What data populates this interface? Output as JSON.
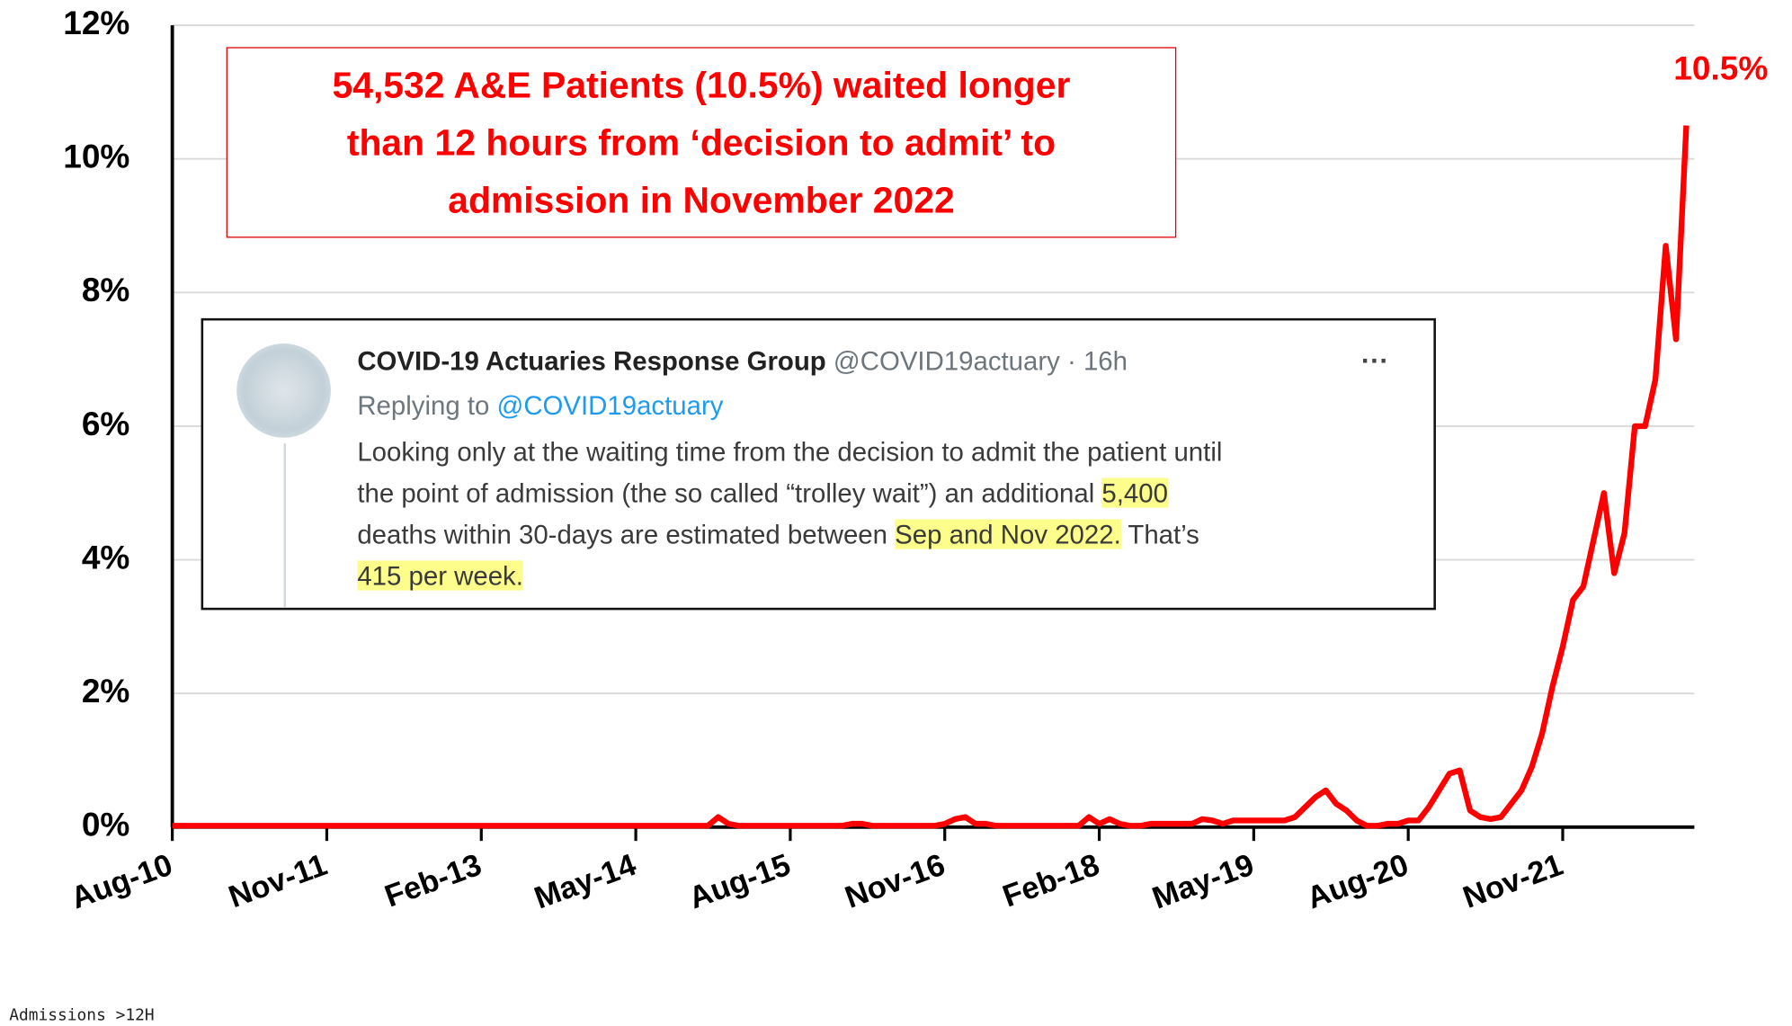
{
  "chart_data": {
    "type": "line",
    "annotation": {
      "lines": [
        "54,532 A&E Patients (10.5%) waited longer",
        "than 12 hours from ‘decision to admit’ to",
        "admission in November 2022"
      ]
    },
    "categories": [
      "Aug-10",
      null,
      null,
      null,
      null,
      null,
      null,
      null,
      null,
      null,
      null,
      null,
      null,
      null,
      null,
      "Nov-11",
      null,
      null,
      null,
      null,
      null,
      null,
      null,
      null,
      null,
      null,
      null,
      null,
      null,
      null,
      "Feb-13",
      null,
      null,
      null,
      null,
      null,
      null,
      null,
      null,
      null,
      null,
      null,
      null,
      null,
      null,
      "May-14",
      null,
      null,
      null,
      null,
      null,
      null,
      null,
      null,
      null,
      null,
      null,
      null,
      null,
      null,
      "Aug-15",
      null,
      null,
      null,
      null,
      null,
      null,
      null,
      null,
      null,
      null,
      null,
      null,
      null,
      null,
      "Nov-16",
      null,
      null,
      null,
      null,
      null,
      null,
      null,
      null,
      null,
      null,
      null,
      null,
      null,
      null,
      "Feb-18",
      null,
      null,
      null,
      null,
      null,
      null,
      null,
      null,
      null,
      null,
      null,
      null,
      null,
      null,
      "May-19",
      null,
      null,
      null,
      null,
      null,
      null,
      null,
      null,
      null,
      null,
      null,
      null,
      null,
      null,
      "Aug-20",
      null,
      null,
      null,
      null,
      null,
      null,
      null,
      null,
      null,
      null,
      null,
      null,
      null,
      null,
      "Nov-21",
      null,
      null,
      null,
      null,
      null,
      null,
      null,
      null,
      null,
      null,
      null,
      null
    ],
    "series": [
      {
        "name": "Admissions >12H",
        "color": "#ff0000",
        "values": [
          0.02,
          0.02,
          0.02,
          0.02,
          0.02,
          0.02,
          0.02,
          0.02,
          0.02,
          0.02,
          0.02,
          0.02,
          0.02,
          0.02,
          0.02,
          0.02,
          0.02,
          0.02,
          0.02,
          0.02,
          0.02,
          0.02,
          0.02,
          0.02,
          0.02,
          0.02,
          0.02,
          0.02,
          0.02,
          0.02,
          0.02,
          0.02,
          0.02,
          0.02,
          0.02,
          0.02,
          0.02,
          0.02,
          0.02,
          0.02,
          0.02,
          0.02,
          0.02,
          0.02,
          0.02,
          0.02,
          0.02,
          0.02,
          0.02,
          0.02,
          0.02,
          0.02,
          0.02,
          0.15,
          0.05,
          0.02,
          0.02,
          0.02,
          0.02,
          0.02,
          0.02,
          0.02,
          0.02,
          0.02,
          0.02,
          0.02,
          0.05,
          0.05,
          0.02,
          0.02,
          0.02,
          0.02,
          0.02,
          0.02,
          0.02,
          0.05,
          0.12,
          0.15,
          0.05,
          0.05,
          0.02,
          0.02,
          0.02,
          0.02,
          0.02,
          0.02,
          0.02,
          0.02,
          0.02,
          0.15,
          0.05,
          0.12,
          0.05,
          0.02,
          0.02,
          0.05,
          0.05,
          0.05,
          0.05,
          0.05,
          0.12,
          0.1,
          0.05,
          0.1,
          0.1,
          0.1,
          0.1,
          0.1,
          0.1,
          0.15,
          0.3,
          0.45,
          0.55,
          0.35,
          0.25,
          0.1,
          0.02,
          0.02,
          0.05,
          0.05,
          0.1,
          0.1,
          0.3,
          0.55,
          0.8,
          0.85,
          0.25,
          0.15,
          0.12,
          0.15,
          0.35,
          0.55,
          0.9,
          1.4,
          2.1,
          2.7,
          3.4,
          3.6,
          4.3,
          5.0,
          3.8,
          4.4,
          6.0,
          6.0,
          6.7,
          8.7,
          7.3,
          10.5
        ],
        "value_labels": [
          null,
          null,
          null,
          null,
          null,
          null,
          null,
          null,
          null,
          null,
          null,
          null,
          null,
          null,
          null,
          null,
          null,
          null,
          null,
          null,
          null,
          null,
          null,
          null,
          null,
          null,
          null,
          null,
          null,
          null,
          null,
          null,
          null,
          null,
          null,
          null,
          null,
          null,
          null,
          null,
          null,
          null,
          null,
          null,
          null,
          null,
          null,
          null,
          null,
          null,
          null,
          null,
          null,
          null,
          null,
          null,
          null,
          null,
          null,
          null,
          null,
          null,
          null,
          null,
          null,
          null,
          null,
          null,
          null,
          null,
          null,
          null,
          null,
          null,
          null,
          null,
          null,
          null,
          null,
          null,
          null,
          null,
          null,
          null,
          null,
          null,
          null,
          null,
          null,
          null,
          null,
          null,
          null,
          null,
          null,
          null,
          null,
          null,
          null,
          null,
          null,
          null,
          null,
          null,
          null,
          null,
          null,
          null,
          null,
          null,
          null,
          null,
          null,
          null,
          null,
          null,
          null,
          null,
          null,
          null,
          null,
          null,
          null,
          null,
          null,
          null,
          null,
          null,
          null,
          null,
          null,
          null,
          null,
          null,
          null,
          null,
          null,
          null,
          null,
          null,
          null,
          null,
          null,
          null,
          null,
          null,
          null,
          "10.5%"
        ]
      }
    ],
    "ylim": [
      0,
      12
    ],
    "yticks": [
      {
        "value": 0,
        "label": "0%"
      },
      {
        "value": 2,
        "label": "2%"
      },
      {
        "value": 4,
        "label": "4%"
      },
      {
        "value": 6,
        "label": "6%"
      },
      {
        "value": 8,
        "label": "8%"
      },
      {
        "value": 10,
        "label": "10%"
      },
      {
        "value": 12,
        "label": "12%"
      }
    ],
    "grid": true,
    "legend": "bottom-left"
  },
  "tweet": {
    "author": "COVID-19 Actuaries Response Group",
    "handle": "@COVID19actuary",
    "time": "· 16h",
    "menu": "···",
    "replying_to": "Replying to",
    "reply_handle": "@COVID19actuary",
    "body_lines": [
      [
        {
          "text": "Looking only at the waiting time from the decision to admit the patient until",
          "highlight": false
        }
      ],
      [
        {
          "text": "the point of admission (the so called “trolley wait”) an additional ",
          "highlight": false
        },
        {
          "text": "5,400",
          "highlight": true
        }
      ],
      [
        {
          "text": "deaths within 30-days are estimated between ",
          "highlight": false
        },
        {
          "text": "Sep and Nov 2022.",
          "highlight": true
        },
        {
          "text": " That’s",
          "highlight": false
        }
      ],
      [
        {
          "text": "415 per week.",
          "highlight": true
        }
      ]
    ]
  }
}
